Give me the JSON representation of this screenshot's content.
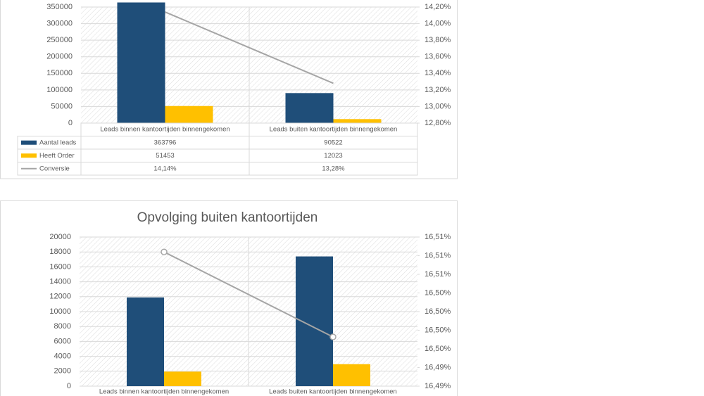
{
  "chart_data": [
    {
      "type": "bar",
      "categories": [
        "Leads binnen kantoortijden binnengekomen",
        "Leads buiten kantoortijden binnengekomen"
      ],
      "series": [
        {
          "name": "Aantal leads",
          "type": "bar",
          "color": "#1f4e79",
          "values": [
            363796,
            90522
          ]
        },
        {
          "name": "Heeft Order",
          "type": "bar",
          "color": "#ffc000",
          "values": [
            51453,
            12023
          ]
        },
        {
          "name": "Conversie",
          "type": "line",
          "axis": "y2",
          "color": "#a5a5a5",
          "values": [
            14.14,
            13.28
          ],
          "value_labels": [
            "14,14%",
            "13,28%"
          ]
        }
      ],
      "ylim": [
        0,
        350000
      ],
      "yticks": [
        0,
        50000,
        100000,
        150000,
        200000,
        250000,
        300000,
        350000
      ],
      "y2lim": [
        12.8,
        14.2
      ],
      "y2ticks": [
        {
          "value": 12.8,
          "label": "12,80%"
        },
        {
          "value": 13.0,
          "label": "13,00%"
        },
        {
          "value": 13.2,
          "label": "13,20%"
        },
        {
          "value": 13.4,
          "label": "13,40%"
        },
        {
          "value": 13.6,
          "label": "13,60%"
        },
        {
          "value": 13.8,
          "label": "13,80%"
        },
        {
          "value": 14.0,
          "label": "14,00%"
        },
        {
          "value": 14.2,
          "label": "14,20%"
        }
      ],
      "grid": true,
      "data_table": true
    },
    {
      "type": "bar",
      "title": "Opvolging buiten kantoortijden",
      "categories": [
        "Leads binnen kantoortijden binnengekomen",
        "Leads buiten kantoortijden binnengekomen"
      ],
      "series": [
        {
          "type": "bar",
          "color": "#1f4e79",
          "values": [
            11900,
            17400
          ]
        },
        {
          "type": "bar",
          "color": "#ffc000",
          "values": [
            1950,
            2950
          ]
        },
        {
          "type": "line",
          "axis": "y2",
          "color": "#a5a5a5",
          "values": [
            16.508,
            16.4966
          ],
          "markers": true
        }
      ],
      "ylim": [
        0,
        20000
      ],
      "yticks": [
        0,
        2000,
        4000,
        6000,
        8000,
        10000,
        12000,
        14000,
        16000,
        18000,
        20000
      ],
      "y2lim": [
        16.49,
        16.51
      ],
      "y2ticks": [
        {
          "value": 16.49,
          "label": "16,49%"
        },
        {
          "value": 16.4925,
          "label": "16,49%"
        },
        {
          "value": 16.495,
          "label": "16,50%"
        },
        {
          "value": 16.4975,
          "label": "16,50%"
        },
        {
          "value": 16.5,
          "label": "16,50%"
        },
        {
          "value": 16.5025,
          "label": "16,50%"
        },
        {
          "value": 16.505,
          "label": "16,51%"
        },
        {
          "value": 16.5075,
          "label": "16,51%"
        },
        {
          "value": 16.51,
          "label": "16,51%"
        }
      ],
      "grid": true,
      "data_table": false
    }
  ]
}
